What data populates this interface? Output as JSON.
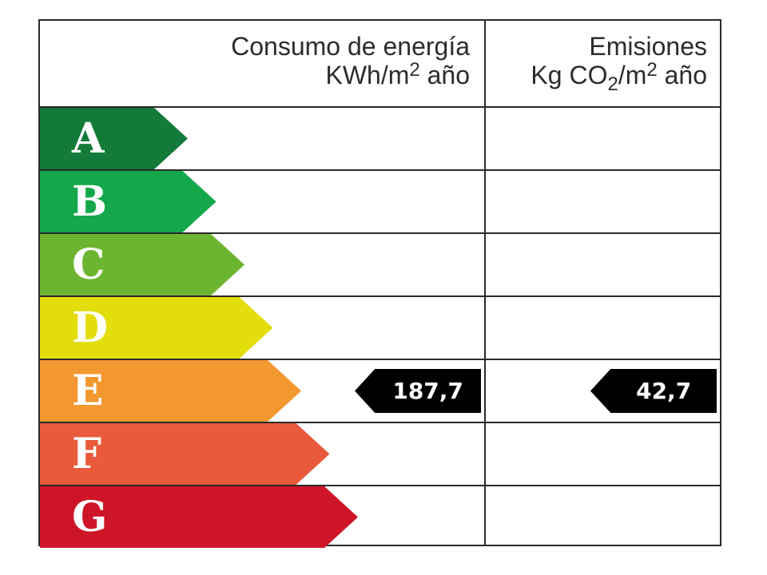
{
  "header": {
    "energy_title": "Consumo de energía",
    "energy_unit": {
      "pre": "KWh/m",
      "sup": "2",
      "post": " año"
    },
    "emissions_title": "Emisiones",
    "emissions_unit": {
      "pre": "Kg CO",
      "sub": "2",
      "mid": "/m",
      "sup": "2",
      "post": " año"
    }
  },
  "bands": [
    {
      "letter": "A",
      "color": "#137a3a"
    },
    {
      "letter": "B",
      "color": "#14a84a"
    },
    {
      "letter": "C",
      "color": "#6cb531"
    },
    {
      "letter": "D",
      "color": "#e2dd0b"
    },
    {
      "letter": "E",
      "color": "#f3982f"
    },
    {
      "letter": "F",
      "color": "#e95a3c"
    },
    {
      "letter": "G",
      "color": "#ce1528"
    }
  ],
  "rating": {
    "energy": {
      "band": "E",
      "value": "187,7"
    },
    "emissions": {
      "band": "E",
      "value": "42,7"
    }
  }
}
